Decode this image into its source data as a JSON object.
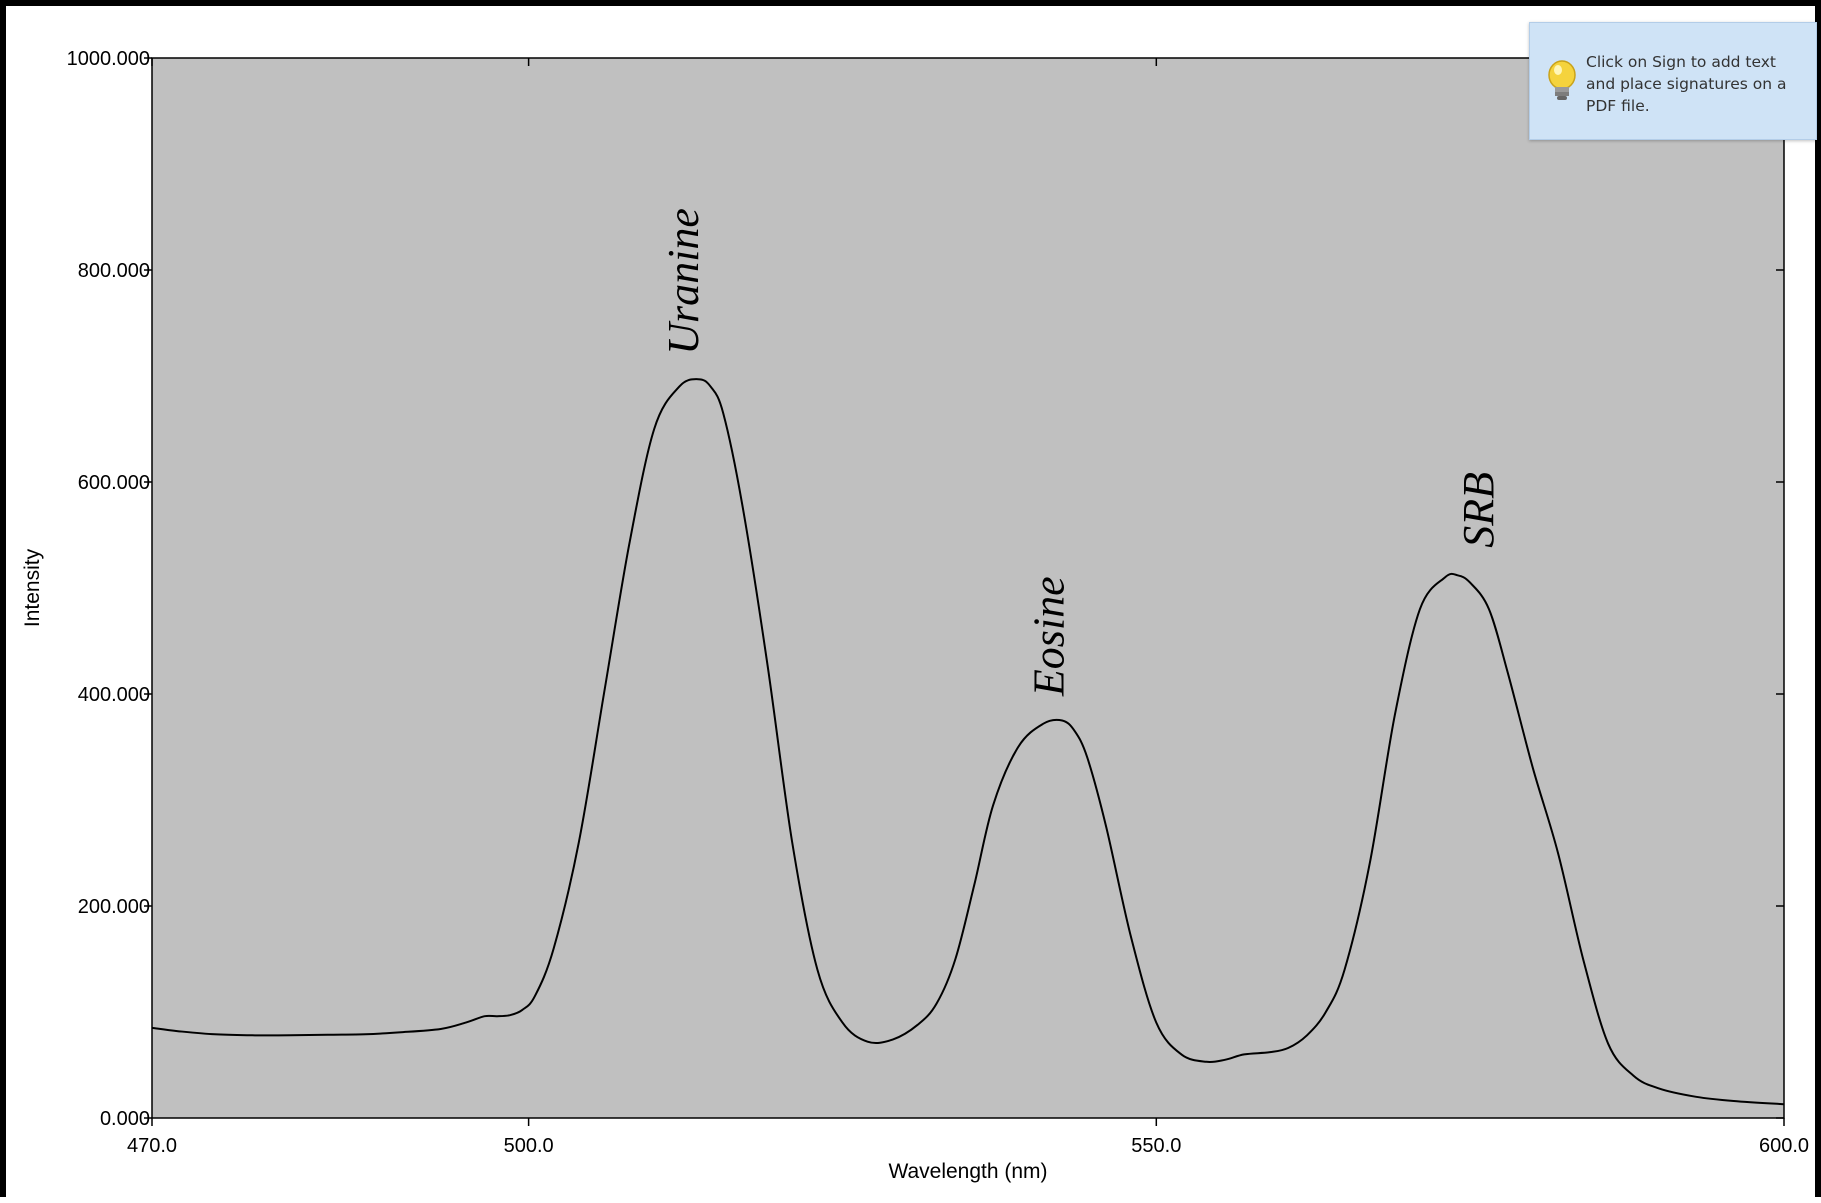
{
  "chart_data": {
    "type": "line",
    "title": "",
    "xlabel": "Wavelength (nm)",
    "ylabel": "Intensity",
    "xlim": [
      470,
      600
    ],
    "ylim": [
      0,
      1000
    ],
    "x_ticks": [
      470,
      500,
      550,
      600
    ],
    "x_tick_labels": [
      "470.0",
      "500.0",
      "550.0",
      "600.0"
    ],
    "y_ticks": [
      0,
      200,
      400,
      600,
      800,
      1000
    ],
    "y_tick_labels": [
      "0.000",
      "200.000",
      "400.000",
      "600.000",
      "800.000",
      "1000.000"
    ],
    "grid": false,
    "plot_background": "#c0c0c0",
    "line_color": "#000000",
    "series": [
      {
        "x": [
          470,
          472,
          475,
          478,
          481,
          484,
          487,
          490,
          493,
          495,
          496.5,
          497.5,
          498.5,
          499.5,
          500.5,
          502,
          504,
          506,
          508,
          510,
          512,
          513.5,
          514.5,
          515.5,
          517,
          519,
          521,
          523,
          525,
          527,
          529,
          531,
          532.5,
          534,
          535.5,
          537,
          539,
          541,
          542.5,
          543.5,
          544.5,
          546,
          548,
          550,
          552,
          554,
          555.5,
          557,
          559,
          560.5,
          562,
          563.5,
          565,
          567,
          569,
          571,
          573,
          574,
          575,
          576.5,
          578,
          580,
          582,
          584,
          586,
          588,
          590,
          593,
          596,
          600
        ],
        "y": [
          85,
          82,
          79,
          78,
          78,
          78.5,
          79,
          81,
          84,
          90,
          96,
          96,
          97,
          102,
          115,
          160,
          260,
          400,
          540,
          650,
          690,
          697,
          690,
          665,
          580,
          430,
          260,
          140,
          90,
          72,
          74,
          88,
          108,
          150,
          220,
          295,
          350,
          372,
          375,
          365,
          340,
          275,
          170,
          90,
          60,
          53,
          55,
          60,
          62,
          66,
          78,
          100,
          140,
          240,
          380,
          480,
          510,
          512,
          505,
          480,
          420,
          330,
          250,
          150,
          70,
          40,
          28,
          20,
          16,
          13
        ]
      }
    ],
    "annotations": [
      {
        "text": "Uranine",
        "x": 513.5,
        "y": 720,
        "rotation": -90
      },
      {
        "text": "Eosine",
        "x": 542.6,
        "y": 398,
        "rotation": -90
      },
      {
        "text": "SRB",
        "x": 576.8,
        "y": 538,
        "rotation": -90
      }
    ]
  },
  "tooltip": {
    "lines": [
      "Click on Sign to add text",
      "and place signatures on a",
      "PDF file."
    ],
    "icon": "lightbulb-icon"
  }
}
